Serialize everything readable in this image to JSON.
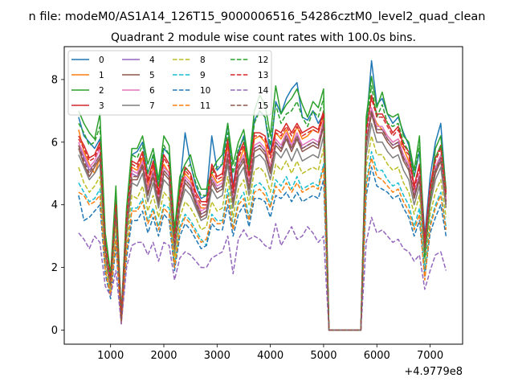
{
  "figure": {
    "suptitle": "n file: modeM0/AS1A14_126T15_9000006516_54286cztM0_level2_quad_clean",
    "title": "Quadrant 2 module wise count rates with 100.0s bins.",
    "offset_label": "+4.9779e8"
  },
  "chart_data": {
    "type": "line",
    "title": "Quadrant 2 module wise count rates with 100.0s bins.",
    "xlabel": "",
    "ylabel": "",
    "x_offset_label": "+4.9779e8",
    "xlim": [
      130,
      7610
    ],
    "ylim": [
      -0.45,
      9.05
    ],
    "xticks": [
      1000,
      2000,
      3000,
      4000,
      5000,
      6000,
      7000
    ],
    "yticks": [
      0,
      2,
      4,
      6,
      8
    ],
    "legend": {
      "position": "top-left",
      "columns": 4
    },
    "x": [
      400,
      500,
      600,
      700,
      800,
      900,
      1000,
      1100,
      1200,
      1300,
      1400,
      1500,
      1600,
      1700,
      1800,
      1900,
      2000,
      2100,
      2200,
      2300,
      2400,
      2500,
      2600,
      2700,
      2800,
      2900,
      3000,
      3100,
      3200,
      3300,
      3400,
      3500,
      3600,
      3700,
      3800,
      3900,
      4000,
      4100,
      4200,
      4300,
      4400,
      4500,
      4600,
      4700,
      4800,
      4900,
      5000,
      5100,
      5700,
      5800,
      5900,
      6000,
      6100,
      6200,
      6300,
      6400,
      6500,
      6600,
      6700,
      6800,
      6900,
      7000,
      7100,
      7200,
      7300
    ],
    "series": [
      {
        "name": "0",
        "color": "#1f77b4",
        "dash": "solid",
        "values": [
          6.8,
          6.2,
          6.0,
          5.8,
          6.1,
          3.0,
          1.7,
          4.3,
          0.5,
          3.8,
          5.6,
          5.7,
          6.0,
          5.0,
          5.6,
          4.6,
          5.8,
          5.6,
          3.0,
          4.6,
          6.3,
          5.3,
          4.6,
          4.2,
          4.3,
          6.2,
          5.1,
          5.3,
          6.6,
          4.6,
          5.7,
          6.2,
          5.1,
          6.7,
          7.0,
          6.8,
          5.6,
          7.3,
          6.9,
          7.4,
          7.7,
          7.9,
          6.8,
          6.7,
          7.0,
          6.6,
          6.9,
          0.0,
          0.0,
          6.5,
          8.6,
          7.2,
          7.4,
          6.9,
          6.6,
          6.8,
          6.3,
          5.9,
          4.9,
          5.7,
          3.0,
          4.9,
          6.0,
          6.6,
          4.4
        ]
      },
      {
        "name": "1",
        "color": "#ff7f0e",
        "dash": "solid",
        "values": [
          6.4,
          5.7,
          5.3,
          5.0,
          5.5,
          2.8,
          1.6,
          4.0,
          0.4,
          3.4,
          5.2,
          5.1,
          5.5,
          4.6,
          5.2,
          4.2,
          5.3,
          5.0,
          2.7,
          4.3,
          5.0,
          4.8,
          4.2,
          3.9,
          3.9,
          5.0,
          4.7,
          4.8,
          5.9,
          4.3,
          5.3,
          5.8,
          4.9,
          6.1,
          6.2,
          6.0,
          5.2,
          6.3,
          6.1,
          6.4,
          6.0,
          6.5,
          6.1,
          6.2,
          6.4,
          6.3,
          6.8,
          0.0,
          0.0,
          6.0,
          7.0,
          6.6,
          6.4,
          6.2,
          6.0,
          6.1,
          5.8,
          5.4,
          4.3,
          4.9,
          2.6,
          4.4,
          5.2,
          5.5,
          4.2
        ]
      },
      {
        "name": "2",
        "color": "#2ca02c",
        "dash": "solid",
        "values": [
          7.0,
          6.6,
          6.3,
          6.1,
          6.9,
          3.1,
          1.8,
          4.6,
          0.5,
          3.9,
          5.8,
          5.8,
          6.2,
          5.3,
          5.8,
          4.8,
          6.2,
          5.9,
          3.2,
          4.9,
          5.3,
          5.6,
          4.9,
          4.5,
          4.5,
          5.1,
          5.4,
          5.6,
          6.6,
          5.3,
          6.0,
          6.4,
          5.3,
          7.0,
          7.5,
          7.2,
          6.2,
          7.8,
          6.9,
          7.2,
          7.4,
          7.7,
          7.2,
          6.8,
          7.3,
          7.1,
          7.7,
          0.0,
          0.0,
          6.8,
          8.1,
          7.1,
          7.6,
          6.9,
          6.8,
          6.9,
          6.2,
          6.0,
          5.1,
          6.2,
          2.4,
          4.3,
          5.8,
          6.2,
          4.5
        ]
      },
      {
        "name": "3",
        "color": "#d62728",
        "dash": "solid",
        "values": [
          6.2,
          5.9,
          5.5,
          5.6,
          6.0,
          2.8,
          1.6,
          4.1,
          0.4,
          3.6,
          5.4,
          5.3,
          5.7,
          4.8,
          5.4,
          4.4,
          5.6,
          5.3,
          2.9,
          4.5,
          5.2,
          5.0,
          4.4,
          4.1,
          4.1,
          5.3,
          4.9,
          5.0,
          6.1,
          4.5,
          5.6,
          6.0,
          5.0,
          6.3,
          6.3,
          6.2,
          5.6,
          6.4,
          6.3,
          6.6,
          6.3,
          6.6,
          6.3,
          6.4,
          6.5,
          6.4,
          7.0,
          0.0,
          0.0,
          6.4,
          7.5,
          6.9,
          6.9,
          6.6,
          6.3,
          6.5,
          5.9,
          5.7,
          4.6,
          5.3,
          2.8,
          4.6,
          5.5,
          5.9,
          4.4
        ]
      },
      {
        "name": "4",
        "color": "#9467bd",
        "dash": "solid",
        "values": [
          5.9,
          5.5,
          5.1,
          5.3,
          5.6,
          2.5,
          1.4,
          3.8,
          0.3,
          3.2,
          5.0,
          4.9,
          5.3,
          4.4,
          5.0,
          4.1,
          5.1,
          4.9,
          2.6,
          4.1,
          4.8,
          4.6,
          4.1,
          3.7,
          3.8,
          4.8,
          4.5,
          4.6,
          5.6,
          4.1,
          5.2,
          5.5,
          4.6,
          5.8,
          5.9,
          5.7,
          5.1,
          6.0,
          5.8,
          6.2,
          5.8,
          6.2,
          5.8,
          5.9,
          6.0,
          5.9,
          6.6,
          0.0,
          0.0,
          6.0,
          7.0,
          6.4,
          6.4,
          6.1,
          5.9,
          6.0,
          5.5,
          5.2,
          4.3,
          4.9,
          2.5,
          4.3,
          5.1,
          5.5,
          4.1
        ]
      },
      {
        "name": "5",
        "color": "#8c564b",
        "dash": "solid",
        "values": [
          5.8,
          5.3,
          4.9,
          5.2,
          5.5,
          2.4,
          1.3,
          3.7,
          0.3,
          3.1,
          4.8,
          4.8,
          5.2,
          4.3,
          4.9,
          4.0,
          5.0,
          4.8,
          2.5,
          4.0,
          4.7,
          4.5,
          4.0,
          3.6,
          3.7,
          4.7,
          4.4,
          4.5,
          5.5,
          4.0,
          5.1,
          5.4,
          4.5,
          5.7,
          5.8,
          5.6,
          5.0,
          5.9,
          5.7,
          6.1,
          5.7,
          6.1,
          5.7,
          5.8,
          5.9,
          5.8,
          6.5,
          0.0,
          0.0,
          5.9,
          6.9,
          6.3,
          6.3,
          6.0,
          5.8,
          5.9,
          5.4,
          5.1,
          4.2,
          4.8,
          2.4,
          4.2,
          5.0,
          5.4,
          4.0
        ]
      },
      {
        "name": "6",
        "color": "#e377c2",
        "dash": "solid",
        "values": [
          6.0,
          5.6,
          5.2,
          5.4,
          5.8,
          2.6,
          1.5,
          3.9,
          0.4,
          3.4,
          5.1,
          5.0,
          5.4,
          4.5,
          5.1,
          4.2,
          5.2,
          5.0,
          2.7,
          4.2,
          4.9,
          4.7,
          4.2,
          3.8,
          3.9,
          4.9,
          4.6,
          4.7,
          5.7,
          4.2,
          5.3,
          5.6,
          4.7,
          5.9,
          6.0,
          5.8,
          5.2,
          6.1,
          5.9,
          6.3,
          5.9,
          6.3,
          5.9,
          6.0,
          6.1,
          6.0,
          6.7,
          0.0,
          0.0,
          6.1,
          7.1,
          6.5,
          6.5,
          6.2,
          6.0,
          6.1,
          5.6,
          5.3,
          4.4,
          5.0,
          2.5,
          4.4,
          5.2,
          5.6,
          4.2
        ]
      },
      {
        "name": "7",
        "color": "#7f7f7f",
        "dash": "solid",
        "values": [
          5.6,
          5.2,
          4.8,
          5.0,
          5.3,
          2.3,
          1.3,
          3.6,
          0.3,
          3.0,
          4.7,
          4.6,
          5.0,
          4.1,
          4.7,
          3.9,
          4.8,
          4.6,
          2.4,
          3.9,
          4.5,
          4.3,
          3.9,
          3.5,
          3.6,
          4.5,
          4.2,
          4.3,
          5.3,
          3.9,
          4.9,
          5.2,
          4.3,
          5.5,
          5.6,
          5.4,
          4.8,
          5.7,
          5.5,
          5.8,
          5.4,
          5.8,
          5.4,
          5.5,
          5.6,
          5.5,
          6.2,
          0.0,
          0.0,
          5.6,
          6.6,
          6.0,
          6.0,
          5.7,
          5.5,
          5.6,
          5.1,
          4.8,
          4.0,
          4.6,
          2.3,
          4.0,
          4.8,
          5.2,
          3.9
        ]
      },
      {
        "name": "8",
        "color": "#bcbd22",
        "dash": "dashed",
        "values": [
          5.2,
          4.7,
          4.4,
          4.6,
          4.9,
          2.1,
          1.2,
          3.3,
          0.3,
          2.8,
          4.3,
          4.2,
          4.6,
          3.8,
          4.3,
          3.6,
          4.4,
          4.2,
          2.2,
          3.6,
          4.1,
          3.9,
          3.6,
          3.2,
          3.3,
          4.1,
          3.8,
          3.9,
          4.9,
          3.6,
          4.5,
          4.8,
          4.0,
          5.1,
          5.2,
          5.0,
          4.4,
          5.3,
          5.1,
          5.4,
          5.0,
          5.4,
          5.0,
          5.1,
          5.2,
          5.1,
          5.8,
          0.0,
          0.0,
          5.2,
          6.2,
          5.6,
          5.6,
          5.3,
          5.1,
          5.2,
          4.7,
          4.4,
          3.7,
          4.3,
          2.1,
          3.7,
          4.4,
          4.8,
          3.6
        ]
      },
      {
        "name": "9",
        "color": "#17becf",
        "dash": "dashed",
        "values": [
          4.7,
          4.4,
          4.1,
          4.2,
          4.5,
          1.9,
          1.1,
          3.0,
          0.3,
          2.5,
          3.9,
          3.9,
          4.2,
          3.5,
          3.9,
          3.3,
          4.0,
          3.9,
          2.0,
          3.3,
          3.7,
          3.5,
          3.2,
          2.9,
          2.7,
          3.7,
          3.5,
          3.5,
          4.5,
          3.3,
          4.1,
          4.4,
          3.6,
          4.6,
          4.7,
          4.5,
          4.0,
          4.8,
          4.6,
          4.9,
          4.5,
          4.9,
          4.5,
          4.6,
          4.7,
          4.6,
          5.3,
          0.0,
          0.0,
          4.7,
          5.7,
          5.1,
          5.1,
          4.8,
          4.6,
          4.7,
          4.3,
          4.0,
          3.3,
          3.9,
          1.9,
          3.4,
          4.0,
          4.4,
          3.3
        ]
      },
      {
        "name": "10",
        "color": "#1f77b4",
        "dash": "dashed",
        "values": [
          4.3,
          3.5,
          3.6,
          3.8,
          4.0,
          1.8,
          1.0,
          2.7,
          0.2,
          2.3,
          3.5,
          3.5,
          3.8,
          3.1,
          3.6,
          3.0,
          3.7,
          3.5,
          1.9,
          3.0,
          3.4,
          3.2,
          2.9,
          2.6,
          2.7,
          3.4,
          3.2,
          3.2,
          4.0,
          3.0,
          3.7,
          4.0,
          3.3,
          4.2,
          4.2,
          4.1,
          3.6,
          4.3,
          4.2,
          4.4,
          4.1,
          4.4,
          4.1,
          4.2,
          4.3,
          4.2,
          4.8,
          0.0,
          0.0,
          4.3,
          5.2,
          4.6,
          4.5,
          4.4,
          4.2,
          4.3,
          3.9,
          3.6,
          3.0,
          3.5,
          1.7,
          3.1,
          3.6,
          4.0,
          3.0
        ]
      },
      {
        "name": "11",
        "color": "#ff7f0e",
        "dash": "dashed",
        "values": [
          4.4,
          4.3,
          4.0,
          4.1,
          4.3,
          1.9,
          1.1,
          2.9,
          0.2,
          2.5,
          3.8,
          3.8,
          4.1,
          3.4,
          3.8,
          3.2,
          3.9,
          3.7,
          2.0,
          3.2,
          3.6,
          3.4,
          3.1,
          2.8,
          2.9,
          3.6,
          3.4,
          3.4,
          4.3,
          3.2,
          4.0,
          4.2,
          3.5,
          4.4,
          4.5,
          4.3,
          3.9,
          4.6,
          4.4,
          4.7,
          4.4,
          4.7,
          4.4,
          4.5,
          4.6,
          4.5,
          5.2,
          0.0,
          0.0,
          4.6,
          5.5,
          4.9,
          4.8,
          4.6,
          4.4,
          4.5,
          4.1,
          3.8,
          3.2,
          3.7,
          1.6,
          3.3,
          3.9,
          4.3,
          3.2
        ]
      },
      {
        "name": "12",
        "color": "#2ca02c",
        "dash": "dashed",
        "values": [
          6.6,
          6.3,
          5.9,
          6.0,
          6.5,
          2.9,
          1.7,
          4.3,
          0.4,
          3.7,
          5.6,
          5.5,
          5.9,
          5.0,
          5.6,
          4.6,
          5.9,
          5.6,
          3.0,
          4.7,
          5.1,
          5.3,
          4.7,
          4.3,
          4.3,
          5.0,
          5.2,
          5.3,
          6.3,
          5.0,
          5.8,
          6.1,
          5.1,
          6.6,
          7.0,
          6.8,
          5.9,
          7.2,
          6.6,
          6.9,
          7.0,
          7.3,
          6.8,
          6.5,
          7.0,
          6.8,
          7.4,
          0.0,
          0.0,
          6.5,
          7.8,
          6.8,
          7.2,
          6.6,
          6.5,
          6.6,
          6.0,
          5.7,
          4.9,
          5.9,
          2.3,
          4.1,
          5.5,
          5.9,
          4.3
        ]
      },
      {
        "name": "13",
        "color": "#d62728",
        "dash": "dashed",
        "values": [
          6.1,
          5.8,
          5.4,
          5.5,
          5.9,
          2.7,
          1.6,
          4.0,
          0.4,
          3.5,
          5.3,
          5.2,
          5.6,
          4.7,
          5.3,
          4.3,
          5.5,
          5.2,
          2.8,
          4.4,
          5.1,
          4.9,
          4.3,
          4.0,
          4.0,
          5.2,
          4.8,
          4.9,
          6.0,
          4.4,
          5.5,
          5.9,
          4.9,
          6.2,
          6.2,
          6.1,
          5.5,
          6.3,
          6.2,
          6.5,
          6.2,
          6.5,
          6.2,
          6.3,
          6.4,
          6.3,
          6.9,
          0.0,
          0.0,
          6.3,
          7.4,
          6.8,
          6.8,
          6.5,
          6.2,
          6.4,
          5.8,
          5.6,
          4.5,
          5.2,
          2.7,
          4.5,
          5.4,
          5.8,
          4.3
        ]
      },
      {
        "name": "14",
        "color": "#9467bd",
        "dash": "dashed",
        "values": [
          3.1,
          2.9,
          2.6,
          3.0,
          2.8,
          1.4,
          1.1,
          1.9,
          0.2,
          2.0,
          2.7,
          2.8,
          2.8,
          2.4,
          2.8,
          2.2,
          2.8,
          2.7,
          1.6,
          2.3,
          2.5,
          2.4,
          2.2,
          2.0,
          2.0,
          2.3,
          2.4,
          2.5,
          3.0,
          1.8,
          2.9,
          3.2,
          2.9,
          3.0,
          2.9,
          2.7,
          2.6,
          3.4,
          2.7,
          3.0,
          3.3,
          2.9,
          3.0,
          3.3,
          3.1,
          2.8,
          3.0,
          0.0,
          0.0,
          2.8,
          3.6,
          3.1,
          3.2,
          3.0,
          2.8,
          2.9,
          2.6,
          2.5,
          2.2,
          2.4,
          1.3,
          1.9,
          2.4,
          2.5,
          1.9
        ]
      },
      {
        "name": "15",
        "color": "#8c564b",
        "dash": "dashed",
        "values": [
          5.9,
          5.4,
          5.0,
          5.3,
          5.6,
          2.5,
          1.4,
          3.8,
          0.3,
          3.2,
          4.9,
          4.9,
          5.3,
          4.4,
          5.0,
          4.1,
          5.1,
          4.9,
          2.6,
          4.1,
          4.8,
          4.6,
          4.1,
          3.7,
          3.8,
          4.8,
          4.5,
          4.6,
          5.6,
          4.1,
          5.2,
          5.5,
          4.6,
          5.8,
          5.9,
          5.7,
          5.1,
          6.0,
          5.8,
          6.2,
          5.8,
          6.2,
          5.8,
          5.9,
          6.0,
          5.9,
          6.6,
          0.0,
          0.0,
          6.0,
          7.0,
          6.4,
          6.4,
          6.1,
          5.9,
          6.0,
          5.5,
          5.2,
          4.3,
          4.9,
          2.5,
          4.3,
          5.1,
          5.5,
          4.1
        ]
      }
    ]
  }
}
